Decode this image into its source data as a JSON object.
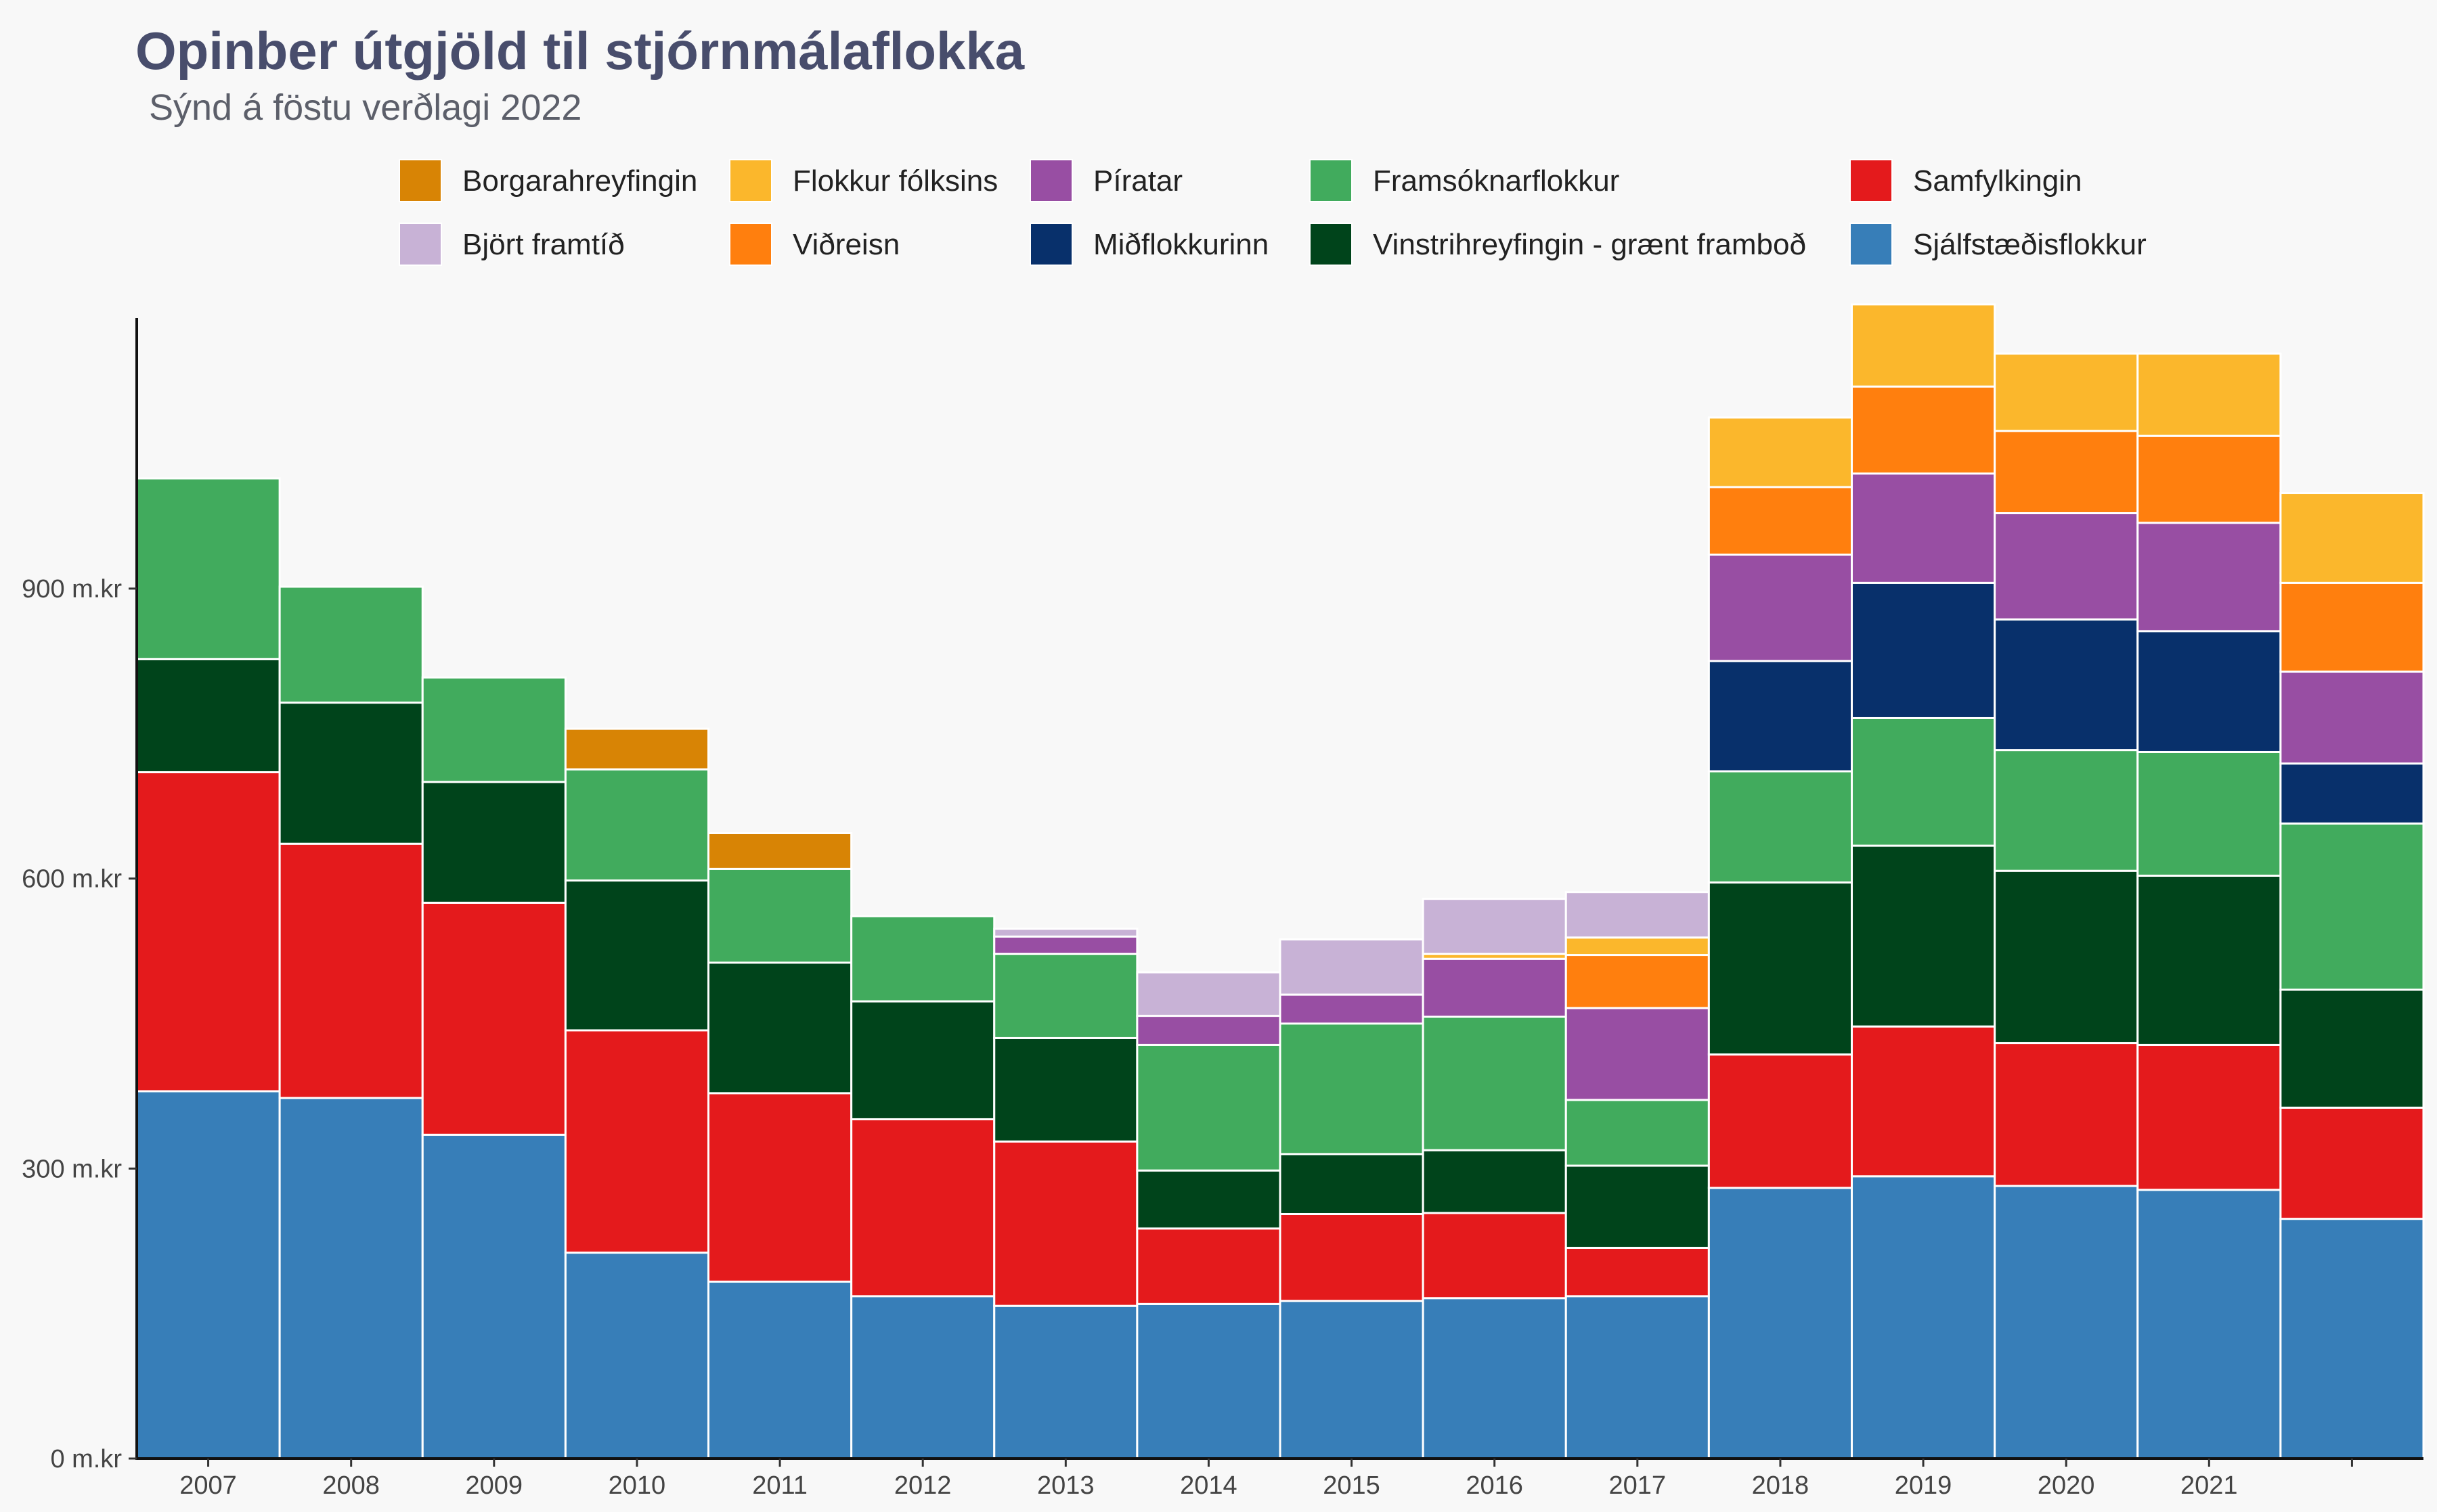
{
  "chart_data": {
    "type": "bar",
    "stacked": true,
    "title": "Opinber útgjöld til stjórnmálaflokka",
    "subtitle": "Sýnd á föstu verðlagi 2022",
    "categories": [
      "2007",
      "2008",
      "2009",
      "2010",
      "2011",
      "2012",
      "2013",
      "2014",
      "2015",
      "2016",
      "2017",
      "2018",
      "2019",
      "2020",
      "2021",
      ""
    ],
    "ylim": [
      0,
      1200
    ],
    "yticks": [
      0,
      300,
      600,
      900
    ],
    "ytick_labels": [
      "0 m.kr",
      "300 m.kr",
      "600 m.kr",
      "900 m.kr"
    ],
    "legend_position": "top",
    "grid": false,
    "series": [
      {
        "name": "Sjálfstæðisflokkur",
        "color": "#377eb8",
        "values": [
          380,
          373,
          335,
          213,
          183,
          168,
          158,
          160,
          163,
          166,
          168,
          280,
          292,
          282,
          278,
          248
        ]
      },
      {
        "name": "Samfylkingin",
        "color": "#e41a1c",
        "values": [
          330,
          263,
          240,
          230,
          195,
          183,
          170,
          78,
          90,
          88,
          50,
          138,
          155,
          148,
          150,
          115
        ]
      },
      {
        "name": "Vinstrihreyfingin - grænt framboð",
        "color": "#00441b",
        "values": [
          117,
          146,
          125,
          155,
          135,
          122,
          107,
          60,
          62,
          65,
          85,
          178,
          187,
          178,
          175,
          122
        ]
      },
      {
        "name": "Framsóknarflokkur",
        "color": "#41ab5d",
        "values": [
          187,
          120,
          108,
          115,
          97,
          88,
          87,
          130,
          135,
          138,
          68,
          115,
          132,
          125,
          128,
          172
        ]
      },
      {
        "name": "Miðflokkurinn",
        "color": "#08306b",
        "values": [
          0,
          0,
          0,
          0,
          0,
          0,
          0,
          0,
          0,
          0,
          0,
          114,
          140,
          135,
          125,
          62
        ]
      },
      {
        "name": "Píratar",
        "color": "#984ea3",
        "values": [
          0,
          0,
          0,
          0,
          0,
          0,
          18,
          30,
          30,
          60,
          95,
          110,
          113,
          110,
          112,
          95
        ]
      },
      {
        "name": "Viðreisn",
        "color": "#ff7f0e",
        "values": [
          0,
          0,
          0,
          0,
          0,
          0,
          0,
          0,
          0,
          0,
          55,
          70,
          90,
          85,
          90,
          92
        ]
      },
      {
        "name": "Flokkur fólksins",
        "color": "#fbb72c",
        "values": [
          0,
          0,
          0,
          0,
          0,
          0,
          0,
          0,
          0,
          5,
          18,
          72,
          85,
          80,
          85,
          93
        ]
      },
      {
        "name": "Björt framtíð",
        "color": "#c8b2d6",
        "values": [
          0,
          0,
          0,
          0,
          0,
          0,
          8,
          45,
          57,
          57,
          47,
          0,
          0,
          0,
          0,
          0
        ]
      },
      {
        "name": "Borgarahreyfingin",
        "color": "#d88405",
        "values": [
          0,
          0,
          0,
          42,
          37,
          0,
          0,
          0,
          0,
          0,
          0,
          0,
          0,
          0,
          0,
          0
        ]
      }
    ],
    "legend_order": [
      "Borgarahreyfingin",
      "Flokkur fólksins",
      "Píratar",
      "Framsóknarflokkur",
      "Samfylkingin",
      "Björt framtíð",
      "Viðreisn",
      "Miðflokkurinn",
      "Vinstrihreyfingin - grænt framboð",
      "Sjálfstæðisflokkur"
    ]
  }
}
